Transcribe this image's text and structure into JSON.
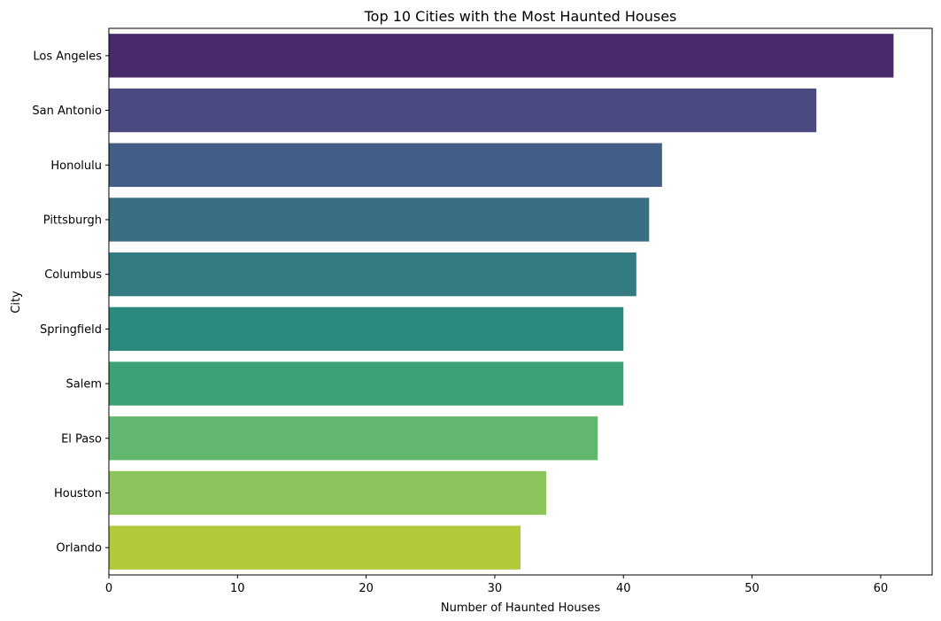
{
  "chart_data": {
    "type": "bar",
    "orientation": "horizontal",
    "title": "Top 10 Cities with the Most Haunted Houses",
    "xlabel": "Number of Haunted Houses",
    "ylabel": "City",
    "categories": [
      "Los Angeles",
      "San Antonio",
      "Honolulu",
      "Pittsburgh",
      "Columbus",
      "Springfield",
      "Salem",
      "El Paso",
      "Houston",
      "Orlando"
    ],
    "values": [
      61,
      55,
      43,
      42,
      41,
      40,
      40,
      38,
      34,
      32
    ],
    "colors": [
      "#482a6b",
      "#4a4a80",
      "#425d86",
      "#3a6e85",
      "#317b81",
      "#2b8a7d",
      "#3da276",
      "#61b76d",
      "#8bc45a",
      "#b2c93a"
    ],
    "xlim": [
      0,
      64
    ],
    "xticks": [
      0,
      10,
      20,
      30,
      40,
      50,
      60
    ],
    "grid": false,
    "legend": "none"
  }
}
